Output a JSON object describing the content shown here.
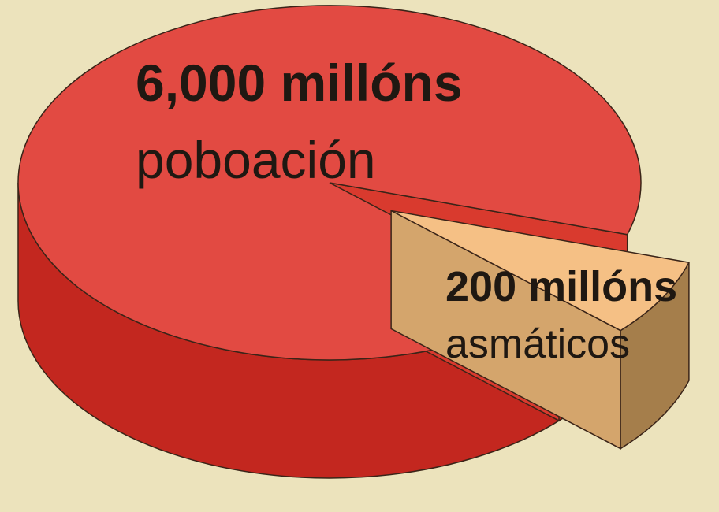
{
  "chart_data": {
    "type": "pie",
    "style": "3d-exploded",
    "categories": [
      "poboación",
      "asmáticos"
    ],
    "values": [
      6000,
      200
    ],
    "unit": "millóns",
    "slices": [
      {
        "value_label": "6,000 millóns",
        "name_label": "poboación",
        "value": 6000,
        "color": "#e24a42",
        "side_color": "#c3271f",
        "inner_color": "#d93a2e"
      },
      {
        "value_label": "200 millóns",
        "name_label": "asmáticos",
        "value": 200,
        "color": "#f5c085",
        "side_color": "#a57e4b",
        "inner_color": "#d4a56c",
        "exploded": true
      }
    ]
  },
  "colors": {
    "background": "#ece3bc",
    "text": "#1f1812",
    "outline": "#3a2418"
  }
}
